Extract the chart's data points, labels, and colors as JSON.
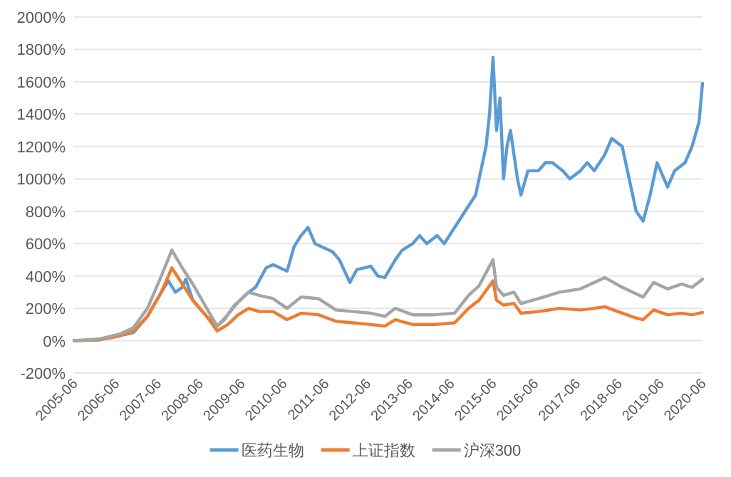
{
  "chart_data": {
    "type": "line",
    "xlim": [
      "2005-06",
      "2020-06"
    ],
    "xticks": [
      "2005-06",
      "2006-06",
      "2007-06",
      "2008-06",
      "2009-06",
      "2010-06",
      "2011-06",
      "2012-06",
      "2013-06",
      "2014-06",
      "2015-06",
      "2016-06",
      "2017-06",
      "2018-06",
      "2019-06",
      "2020-06"
    ],
    "ylim": [
      -200,
      2000
    ],
    "yticks": [
      {
        "value": -200,
        "label": "-200%"
      },
      {
        "value": 0,
        "label": "0%"
      },
      {
        "value": 200,
        "label": "200%"
      },
      {
        "value": 400,
        "label": "400%"
      },
      {
        "value": 600,
        "label": "600%"
      },
      {
        "value": 800,
        "label": "800%"
      },
      {
        "value": 1000,
        "label": "1000%"
      },
      {
        "value": 1200,
        "label": "1200%"
      },
      {
        "value": 1400,
        "label": "1400%"
      },
      {
        "value": 1600,
        "label": "1600%"
      },
      {
        "value": 1800,
        "label": "1800%"
      },
      {
        "value": 2000,
        "label": "2000%"
      }
    ],
    "grid": "y",
    "legend": "bottom",
    "series": [
      {
        "name": "医药生物",
        "color": "#5b9bd5",
        "x": [
          "2005-06",
          "2006-01",
          "2006-07",
          "2006-11",
          "2007-03",
          "2007-07",
          "2007-09",
          "2007-11",
          "2008-01",
          "2008-02",
          "2008-04",
          "2008-08",
          "2008-11",
          "2009-01",
          "2009-04",
          "2009-08",
          "2009-10",
          "2010-01",
          "2010-03",
          "2010-07",
          "2010-09",
          "2010-11",
          "2011-01",
          "2011-03",
          "2011-05",
          "2011-08",
          "2011-10",
          "2012-01",
          "2012-03",
          "2012-07",
          "2012-09",
          "2012-11",
          "2013-02",
          "2013-04",
          "2013-07",
          "2013-09",
          "2013-11",
          "2014-02",
          "2014-04",
          "2014-07",
          "2014-10",
          "2015-01",
          "2015-02",
          "2015-04",
          "2015-05",
          "2015-06",
          "2015-07",
          "2015-08",
          "2015-09",
          "2015-10",
          "2015-11",
          "2016-01",
          "2016-02",
          "2016-04",
          "2016-07",
          "2016-09",
          "2016-11",
          "2017-02",
          "2017-04",
          "2017-07",
          "2017-09",
          "2017-11",
          "2018-02",
          "2018-04",
          "2018-07",
          "2018-09",
          "2018-11",
          "2019-01",
          "2019-03",
          "2019-05",
          "2019-08",
          "2019-10",
          "2020-01",
          "2020-03",
          "2020-05",
          "2020-06"
        ],
        "values": [
          0,
          5,
          30,
          50,
          150,
          300,
          370,
          300,
          330,
          380,
          250,
          150,
          90,
          130,
          220,
          300,
          330,
          450,
          470,
          430,
          580,
          650,
          700,
          600,
          580,
          550,
          500,
          360,
          440,
          460,
          400,
          390,
          500,
          560,
          600,
          650,
          600,
          650,
          600,
          700,
          800,
          900,
          1000,
          1200,
          1400,
          1750,
          1300,
          1500,
          1000,
          1200,
          1300,
          1000,
          900,
          1050,
          1050,
          1100,
          1100,
          1050,
          1000,
          1050,
          1100,
          1050,
          1150,
          1250,
          1200,
          1000,
          800,
          740,
          900,
          1100,
          950,
          1050,
          1100,
          1200,
          1350,
          1590
        ]
      },
      {
        "name": "上证指数",
        "color": "#ed7d31",
        "x": [
          "2005-06",
          "2006-01",
          "2006-07",
          "2006-11",
          "2007-03",
          "2007-07",
          "2007-10",
          "2008-01",
          "2008-04",
          "2008-08",
          "2008-11",
          "2009-02",
          "2009-05",
          "2009-08",
          "2009-11",
          "2010-03",
          "2010-07",
          "2010-11",
          "2011-04",
          "2011-09",
          "2012-02",
          "2012-07",
          "2012-11",
          "2013-02",
          "2013-07",
          "2014-01",
          "2014-07",
          "2014-11",
          "2015-02",
          "2015-06",
          "2015-07",
          "2015-09",
          "2015-12",
          "2016-02",
          "2016-07",
          "2017-01",
          "2017-07",
          "2017-11",
          "2018-02",
          "2018-07",
          "2018-11",
          "2019-01",
          "2019-04",
          "2019-08",
          "2019-12",
          "2020-03",
          "2020-06"
        ],
        "values": [
          0,
          5,
          30,
          60,
          150,
          300,
          450,
          350,
          250,
          150,
          60,
          100,
          160,
          200,
          180,
          180,
          130,
          170,
          160,
          120,
          110,
          100,
          90,
          130,
          100,
          100,
          110,
          200,
          250,
          370,
          250,
          220,
          230,
          170,
          180,
          200,
          190,
          200,
          210,
          170,
          140,
          130,
          190,
          160,
          170,
          160,
          175
        ]
      },
      {
        "name": "沪深300",
        "color": "#a5a5a5",
        "x": [
          "2005-06",
          "2006-01",
          "2006-07",
          "2006-11",
          "2007-03",
          "2007-07",
          "2007-10",
          "2008-01",
          "2008-04",
          "2008-08",
          "2008-11",
          "2009-02",
          "2009-05",
          "2009-08",
          "2009-11",
          "2010-03",
          "2010-07",
          "2010-11",
          "2011-04",
          "2011-09",
          "2012-02",
          "2012-07",
          "2012-11",
          "2013-02",
          "2013-07",
          "2014-01",
          "2014-07",
          "2014-11",
          "2015-02",
          "2015-06",
          "2015-07",
          "2015-09",
          "2015-12",
          "2016-02",
          "2016-07",
          "2017-01",
          "2017-07",
          "2017-11",
          "2018-02",
          "2018-07",
          "2018-11",
          "2019-01",
          "2019-04",
          "2019-08",
          "2019-12",
          "2020-03",
          "2020-06"
        ],
        "values": [
          0,
          10,
          40,
          80,
          200,
          400,
          560,
          450,
          350,
          200,
          90,
          160,
          240,
          300,
          280,
          260,
          200,
          270,
          260,
          190,
          180,
          170,
          150,
          200,
          160,
          160,
          170,
          280,
          340,
          500,
          330,
          280,
          300,
          230,
          260,
          300,
          320,
          360,
          390,
          330,
          290,
          270,
          360,
          320,
          350,
          330,
          380
        ]
      }
    ]
  }
}
